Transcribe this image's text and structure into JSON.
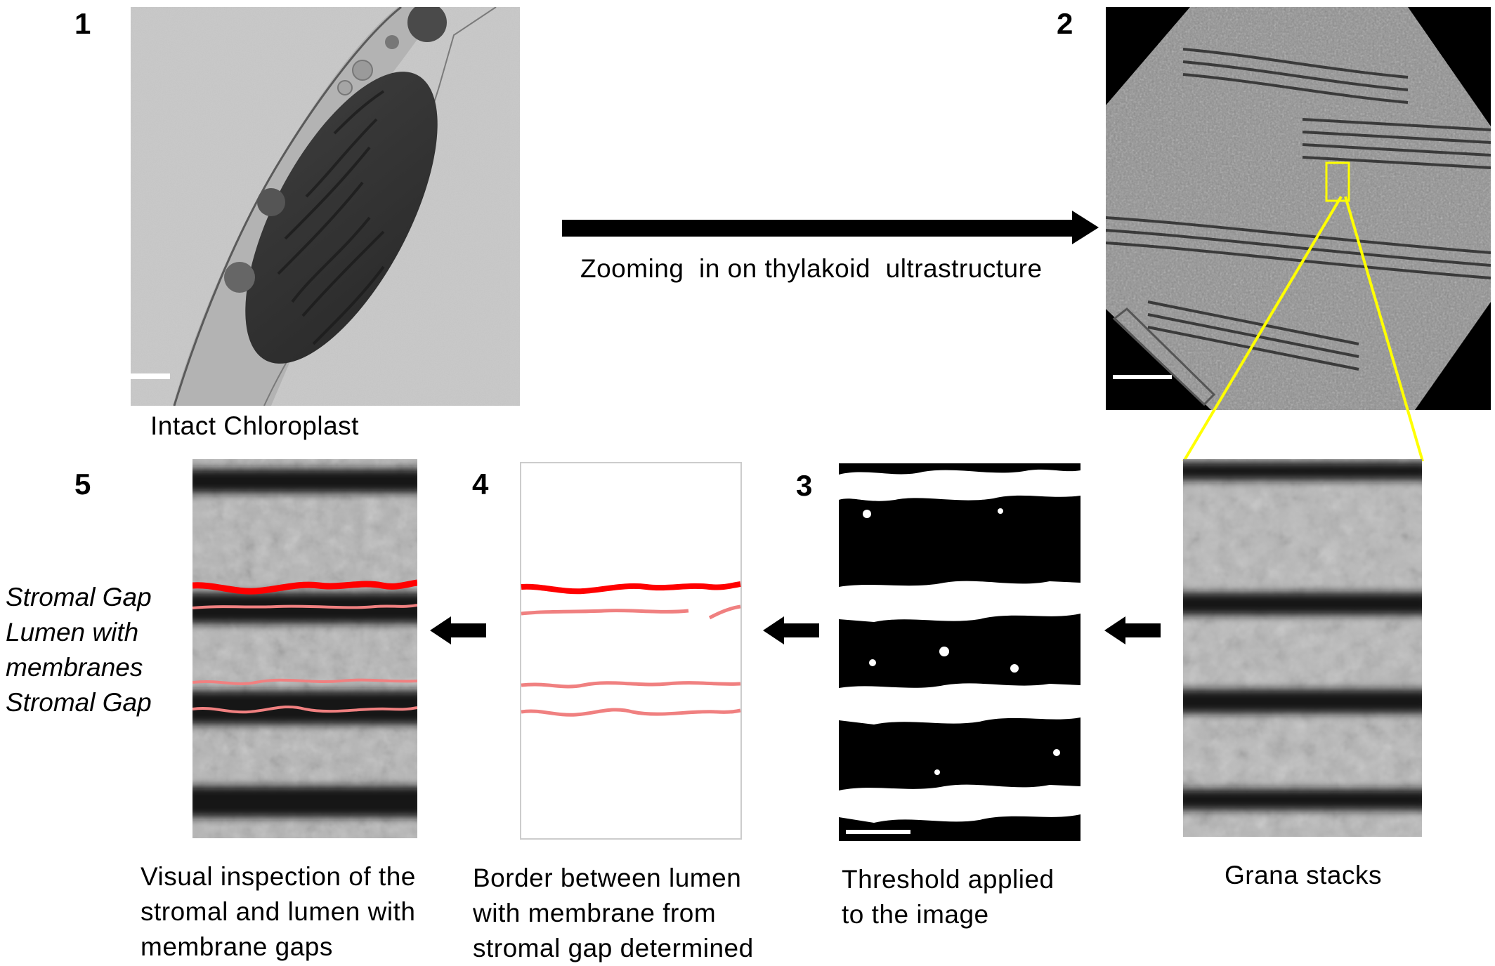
{
  "panels": {
    "p1": {
      "number": "1",
      "caption": "Intact Chloroplast"
    },
    "p2": {
      "number": "2"
    },
    "grana": {
      "caption": "Grana stacks"
    },
    "p3": {
      "number": "3",
      "caption_lines": [
        "Threshold applied",
        "to the image"
      ]
    },
    "p4": {
      "number": "4",
      "caption_lines": [
        "Border between lumen",
        "with membrane from",
        "stromal gap determined"
      ]
    },
    "p5": {
      "number": "5",
      "caption_lines": [
        "Visual inspection of the",
        "stromal and lumen with",
        "membrane gaps"
      ]
    }
  },
  "zoom_arrow": {
    "label": "Zooming  in on thylakoid  ultrastructure"
  },
  "side_labels": [
    "Stromal Gap",
    "Lumen with",
    "membranes",
    "Stromal Gap"
  ],
  "colors": {
    "border_dark": "#ff0000",
    "border_light": "#f08080",
    "highlight_box": "#ffff00",
    "arrow": "#000000"
  }
}
